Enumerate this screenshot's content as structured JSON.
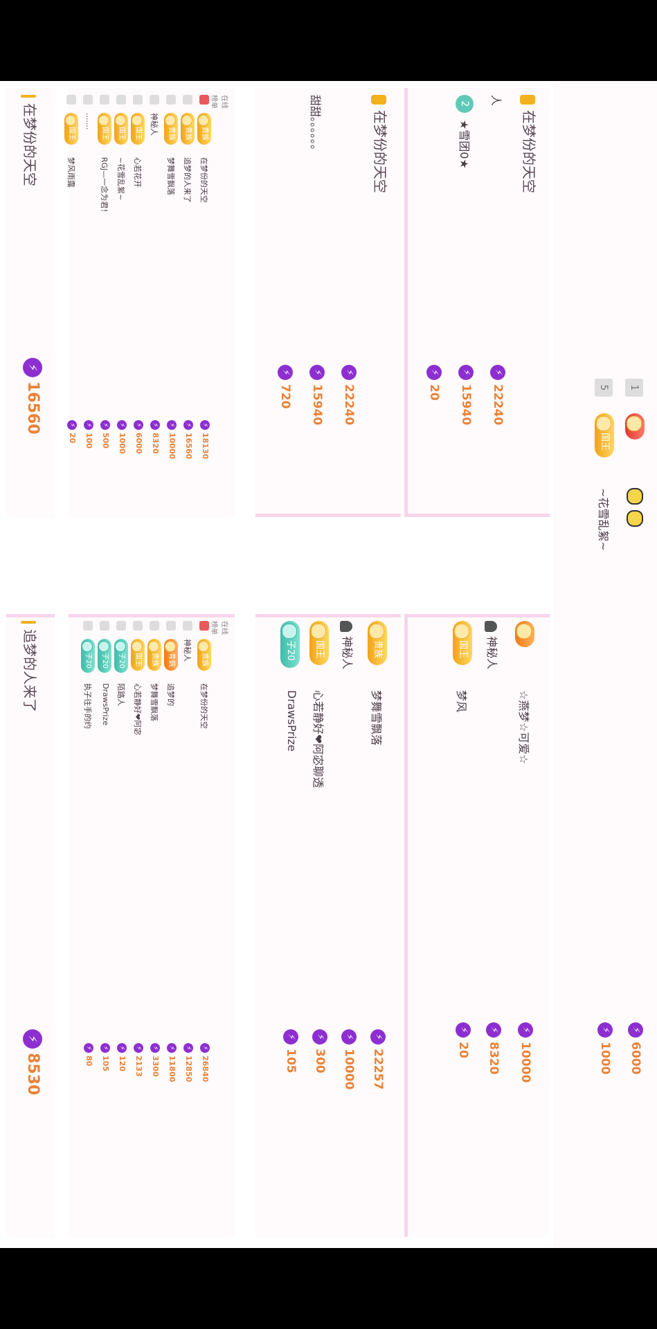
{
  "top_strip": {
    "rows": [
      {
        "rank": "1",
        "badge": "",
        "pills": [
          "",
          ""
        ]
      },
      {
        "rank": "5",
        "badge": "国王",
        "name": "~花雪乱絮~"
      }
    ],
    "values": [
      "6000",
      "1000"
    ]
  },
  "card_a": {
    "title": "在梦份的天空",
    "rows": [
      {
        "rank": "",
        "name": "人",
        "value": "22240"
      },
      {
        "rank": "2",
        "name": "★雪团0★",
        "value": "15940"
      },
      {
        "rank": "",
        "name": "",
        "value": "20"
      }
    ]
  },
  "card_b": {
    "rows": [
      {
        "badge": "",
        "name": "☆燕梦☆可爱☆",
        "value": "10000"
      },
      {
        "badge": "",
        "name": "神秘人",
        "value": "8320"
      },
      {
        "badge": "国王",
        "name": "梦风",
        "value": "20"
      }
    ]
  },
  "card_c": {
    "title": "在梦份的天空",
    "rows": [
      {
        "name": "",
        "value": "22240"
      },
      {
        "name": "甜甜。。。。。。",
        "value": "15940"
      },
      {
        "name": "",
        "value": "720"
      }
    ]
  },
  "card_d": {
    "rows": [
      {
        "badge": "贵族",
        "name": "梦舞雪飘落",
        "value": "22257"
      },
      {
        "badge": "",
        "name": "神秘人",
        "value": "10000"
      },
      {
        "badge": "国王",
        "name": "心若静好❤阿宓聊透",
        "value": "300"
      },
      {
        "badge": "子20",
        "name": "DrawsPrize",
        "value": "105"
      }
    ]
  },
  "list_left": {
    "header": [
      "在线",
      "榜单"
    ],
    "rows": [
      {
        "badge": "贵族",
        "name": "在梦份的天空",
        "value": "18130"
      },
      {
        "badge": "贵族",
        "name": "追梦的人来了",
        "value": "16560"
      },
      {
        "badge": "贵族",
        "name": "梦舞雪飘落",
        "value": "10000"
      },
      {
        "badge": "",
        "name": "神秘人",
        "value": "8320"
      },
      {
        "badge": "国王",
        "name": "心若花开",
        "value": "6000"
      },
      {
        "badge": "国王",
        "name": "~花雪乱絮~",
        "value": "1000"
      },
      {
        "badge": "国王",
        "name": "RGJ—一念为君！",
        "value": "500"
      },
      {
        "badge": "",
        "name": ".......",
        "value": "100"
      },
      {
        "badge": "国王",
        "name": "梦风雨露",
        "value": "20"
      }
    ]
  },
  "list_right": {
    "header": [
      "在线",
      "榜单"
    ],
    "rows": [
      {
        "badge": "贵族",
        "name": "在梦份的天空",
        "value": "26840"
      },
      {
        "badge": "",
        "name": "神秘人",
        "value": "12850"
      },
      {
        "badge": "青铜",
        "name": "追梦的",
        "value": "11800"
      },
      {
        "badge": "贵族",
        "name": "梦舞雪飘落",
        "value": "3300"
      },
      {
        "badge": "国王",
        "name": "心若静好❤阿宓",
        "value": "2133"
      },
      {
        "badge": "子20",
        "name": "陌路人",
        "value": "120"
      },
      {
        "badge": "子20",
        "name": "DrawsPrize",
        "value": "105"
      },
      {
        "badge": "子20",
        "name": "执子往手的约",
        "value": "80"
      }
    ]
  },
  "footer_left": {
    "title": "在梦份的天空",
    "total": "16560"
  },
  "footer_right": {
    "title": "追梦的人来了",
    "total": "8530"
  }
}
